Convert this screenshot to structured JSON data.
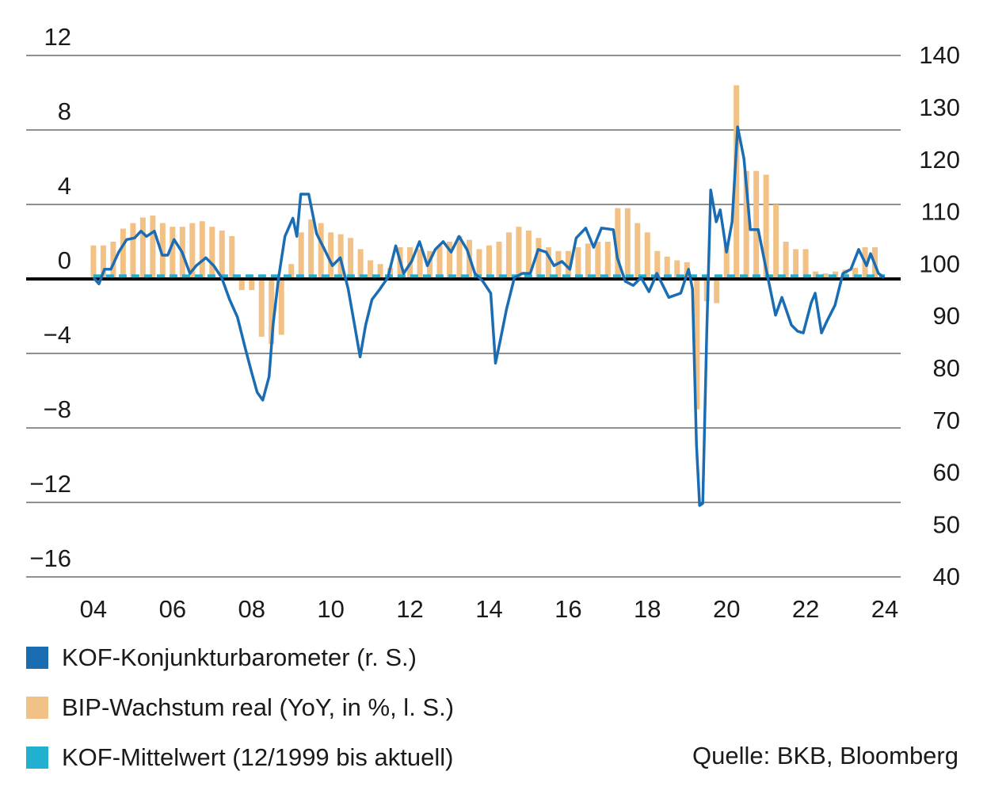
{
  "chart_data": {
    "type": "combo",
    "xlim": [
      2002.3,
      2024.4
    ],
    "xticks": [
      {
        "value": 2004,
        "label": "04"
      },
      {
        "value": 2006,
        "label": "06"
      },
      {
        "value": 2008,
        "label": "08"
      },
      {
        "value": 2010,
        "label": "10"
      },
      {
        "value": 2012,
        "label": "12"
      },
      {
        "value": 2014,
        "label": "14"
      },
      {
        "value": 2016,
        "label": "16"
      },
      {
        "value": 2018,
        "label": "18"
      },
      {
        "value": 2020,
        "label": "20"
      },
      {
        "value": 2022,
        "label": "22"
      },
      {
        "value": 2024,
        "label": "24"
      }
    ],
    "ylim": [
      -16,
      12
    ],
    "yticks": [
      {
        "value": -16,
        "label": "−16"
      },
      {
        "value": -12,
        "label": "−12"
      },
      {
        "value": -8,
        "label": "−8"
      },
      {
        "value": -4,
        "label": "−4"
      },
      0,
      4,
      8,
      12
    ],
    "y2lim": [
      40,
      140
    ],
    "y2ticks": [
      40,
      50,
      60,
      70,
      80,
      90,
      100,
      110,
      120,
      130,
      140
    ],
    "grid": true,
    "source": "Quelle: BKB, Bloomberg",
    "series": [
      {
        "name": "KOF-Konjunkturbarometer (r. S.)",
        "type": "line",
        "axis": "y2",
        "color": "#1a6db3",
        "x": [
          2004.0,
          2004.14,
          2004.28,
          2004.44,
          2004.64,
          2004.84,
          2005.04,
          2005.2,
          2005.34,
          2005.54,
          2005.74,
          2005.88,
          2006.04,
          2006.24,
          2006.44,
          2006.6,
          2006.84,
          2007.04,
          2007.24,
          2007.44,
          2007.64,
          2007.84,
          2008.0,
          2008.14,
          2008.28,
          2008.44,
          2008.54,
          2008.68,
          2008.84,
          2009.04,
          2009.14,
          2009.24,
          2009.44,
          2009.64,
          2009.84,
          2010.04,
          2010.24,
          2010.44,
          2010.6,
          2010.74,
          2010.88,
          2011.04,
          2011.24,
          2011.44,
          2011.64,
          2011.84,
          2012.04,
          2012.24,
          2012.44,
          2012.64,
          2012.84,
          2013.04,
          2013.24,
          2013.44,
          2013.64,
          2013.84,
          2014.04,
          2014.16,
          2014.28,
          2014.44,
          2014.64,
          2014.84,
          2015.04,
          2015.24,
          2015.44,
          2015.64,
          2015.84,
          2016.04,
          2016.2,
          2016.44,
          2016.64,
          2016.84,
          2017.14,
          2017.24,
          2017.44,
          2017.64,
          2017.84,
          2018.04,
          2018.24,
          2018.54,
          2018.84,
          2019.04,
          2019.14,
          2019.24,
          2019.32,
          2019.4,
          2019.5,
          2019.6,
          2019.74,
          2019.84,
          2020.0,
          2020.14,
          2020.28,
          2020.44,
          2020.6,
          2020.8,
          2021.0,
          2021.24,
          2021.4,
          2021.64,
          2021.8,
          2021.94,
          2022.14,
          2022.24,
          2022.4,
          2022.54,
          2022.74,
          2022.94,
          2023.14,
          2023.34,
          2023.54,
          2023.64,
          2023.84,
          2023.98
        ],
        "values": [
          97.4,
          96.2,
          99.0,
          99.0,
          102.3,
          104.7,
          105.0,
          106.3,
          105.3,
          106.3,
          101.7,
          101.7,
          104.7,
          102.3,
          98.2,
          99.7,
          101.2,
          99.7,
          97.4,
          93.2,
          89.8,
          83.8,
          79.2,
          75.4,
          73.9,
          78.4,
          88.3,
          97.4,
          105.3,
          108.8,
          105.3,
          113.4,
          113.4,
          105.8,
          102.8,
          99.7,
          101.2,
          95.2,
          88.3,
          82.2,
          88.3,
          93.2,
          95.2,
          97.4,
          103.5,
          98.2,
          100.5,
          104.3,
          99.7,
          102.8,
          104.3,
          102.3,
          105.3,
          102.8,
          98.2,
          96.7,
          94.4,
          81.0,
          85.3,
          91.4,
          97.4,
          98.2,
          98.2,
          102.8,
          102.3,
          99.7,
          100.5,
          99.0,
          105.0,
          106.9,
          103.2,
          106.9,
          106.6,
          101.2,
          96.7,
          95.9,
          97.4,
          94.7,
          98.2,
          93.6,
          94.4,
          99.0,
          95.2,
          65.5,
          53.7,
          54.1,
          86.8,
          114.2,
          108.1,
          110.4,
          102.3,
          108.1,
          126.3,
          120.2,
          106.6,
          106.6,
          99.0,
          90.2,
          93.6,
          88.3,
          87.1,
          86.8,
          92.6,
          94.4,
          86.8,
          89.1,
          92.1,
          98.2,
          99.0,
          102.8,
          99.7,
          102.0,
          98.2,
          97.4
        ]
      },
      {
        "name": "BIP-Wachstum real (YoY, in %, l. S.)",
        "type": "bar",
        "axis": "y",
        "color": "#f2c185",
        "x": [
          2004.0,
          2004.25,
          2004.5,
          2004.75,
          2005.0,
          2005.25,
          2005.5,
          2005.75,
          2006.0,
          2006.25,
          2006.5,
          2006.75,
          2007.0,
          2007.25,
          2007.5,
          2007.75,
          2008.0,
          2008.25,
          2008.5,
          2008.75,
          2009.0,
          2009.25,
          2009.5,
          2009.75,
          2010.0,
          2010.25,
          2010.5,
          2010.75,
          2011.0,
          2011.25,
          2011.5,
          2011.75,
          2012.0,
          2012.25,
          2012.5,
          2012.75,
          2013.0,
          2013.25,
          2013.5,
          2013.75,
          2014.0,
          2014.25,
          2014.5,
          2014.75,
          2015.0,
          2015.25,
          2015.5,
          2015.75,
          2016.0,
          2016.25,
          2016.5,
          2016.75,
          2017.0,
          2017.25,
          2017.5,
          2017.75,
          2018.0,
          2018.25,
          2018.5,
          2018.75,
          2019.0,
          2019.25,
          2019.5,
          2019.75,
          2020.0,
          2020.25,
          2020.5,
          2020.75,
          2021.0,
          2021.25,
          2021.5,
          2021.75,
          2022.0,
          2022.25,
          2022.5,
          2022.75,
          2023.0,
          2023.25,
          2023.5,
          2023.75
        ],
        "values": [
          1.8,
          1.8,
          2.0,
          2.7,
          3.0,
          3.3,
          3.4,
          3.0,
          2.8,
          2.8,
          3.0,
          3.1,
          2.8,
          2.6,
          2.3,
          -0.6,
          -0.6,
          -3.1,
          -3.5,
          -3.0,
          0.8,
          2.5,
          3.2,
          3.0,
          2.5,
          2.4,
          2.2,
          1.6,
          1.0,
          0.8,
          0.6,
          1.7,
          1.7,
          1.6,
          1.5,
          1.8,
          2.0,
          2.3,
          2.1,
          1.6,
          1.8,
          2.0,
          2.5,
          2.8,
          2.6,
          2.2,
          1.7,
          1.5,
          1.5,
          1.7,
          1.9,
          2.0,
          2.0,
          3.8,
          3.8,
          3.0,
          2.5,
          1.5,
          1.2,
          1.0,
          0.9,
          -7.0,
          -1.2,
          -1.3,
          2.0,
          10.4,
          5.8,
          5.8,
          5.6,
          4.0,
          2.0,
          1.6,
          1.6,
          0.4,
          0.3,
          0.4,
          0.5,
          0.6,
          1.7,
          1.7
        ]
      },
      {
        "name": "KOF-Mittelwert (12/1999 bis aktuell)",
        "type": "line",
        "axis": "y2",
        "color": "#22b0d0",
        "dashed": true,
        "x": [
          2004.0,
          2024.0
        ],
        "values": [
          97.7,
          97.7
        ]
      }
    ]
  }
}
